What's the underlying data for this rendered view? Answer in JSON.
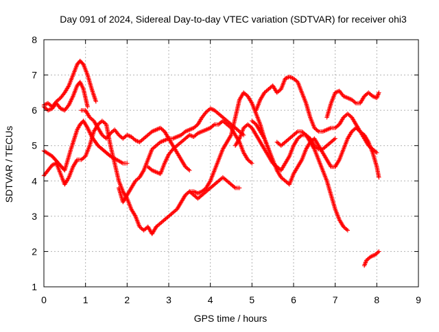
{
  "chart_data": {
    "type": "scatter",
    "title": "Day 091 of 2024, Sidereal Day-to-day VTEC variation (SDTVAR) for receiver ohi3",
    "xlabel": "GPS time / hours",
    "ylabel": "SDTVAR / TECUs",
    "xlim": [
      0,
      9
    ],
    "ylim": [
      1,
      8
    ],
    "xticks": [
      "0",
      "1",
      "2",
      "3",
      "4",
      "5",
      "6",
      "7",
      "8",
      "9"
    ],
    "yticks": [
      "1",
      "2",
      "3",
      "4",
      "5",
      "6",
      "7",
      "8"
    ],
    "grid": true,
    "marker": "+",
    "color": "#ff0000",
    "series": [
      {
        "name": "s1",
        "x": [
          0.0,
          0.2,
          0.35,
          0.5,
          0.65,
          0.8,
          0.87,
          0.95,
          1.05,
          1.15,
          1.3,
          1.45,
          1.6,
          1.75,
          1.9,
          2.0
        ],
        "y": [
          4.85,
          4.7,
          4.5,
          4.3,
          4.9,
          5.45,
          5.6,
          5.7,
          5.5,
          5.25,
          5.0,
          4.85,
          4.7,
          4.6,
          4.5,
          4.5
        ]
      },
      {
        "name": "s2",
        "x": [
          0.0,
          0.1,
          0.2,
          0.3,
          0.4,
          0.5,
          0.6,
          0.7,
          0.8,
          0.87,
          0.95,
          1.05,
          1.15,
          1.25
        ],
        "y": [
          6.15,
          6.2,
          6.1,
          6.25,
          6.35,
          6.5,
          6.7,
          7.0,
          7.3,
          7.4,
          7.3,
          7.0,
          6.6,
          6.25
        ]
      },
      {
        "name": "s3",
        "x": [
          0.0,
          0.1,
          0.2,
          0.3,
          0.4,
          0.5,
          0.6,
          0.7,
          0.8,
          0.87,
          0.95,
          1.05
        ],
        "y": [
          6.1,
          6.0,
          6.05,
          6.2,
          6.05,
          6.0,
          6.15,
          6.4,
          6.7,
          6.8,
          6.6,
          6.1
        ]
      },
      {
        "name": "s4",
        "x": [
          0.0,
          0.1,
          0.2,
          0.3,
          0.4,
          0.5,
          0.6,
          0.7,
          0.8,
          0.9,
          1.0,
          1.1,
          1.2,
          1.3,
          1.4,
          1.5,
          1.6,
          1.7,
          1.8,
          1.9,
          2.0,
          2.1,
          2.2,
          2.3,
          2.4,
          2.5,
          2.6,
          2.7
        ],
        "y": [
          4.15,
          4.3,
          4.45,
          4.5,
          4.2,
          3.9,
          4.1,
          4.4,
          4.6,
          4.6,
          4.7,
          5.0,
          5.4,
          5.6,
          5.7,
          5.6,
          5.0,
          4.5,
          4.0,
          3.7,
          3.5,
          3.2,
          3.0,
          2.7,
          2.6,
          2.7,
          2.5,
          2.7
        ]
      },
      {
        "name": "s5",
        "x": [
          0.9,
          1.0,
          1.1,
          1.2,
          1.3,
          1.4,
          1.5,
          1.6,
          1.7,
          1.8,
          1.9,
          2.0,
          2.1,
          2.2,
          2.3,
          2.4,
          2.5,
          2.6,
          2.7,
          2.8,
          2.9,
          3.0,
          3.1,
          3.2,
          3.3,
          3.4,
          3.5
        ],
        "y": [
          6.0,
          6.0,
          5.8,
          5.7,
          5.5,
          5.3,
          5.2,
          5.35,
          5.45,
          5.3,
          5.2,
          5.3,
          5.25,
          5.15,
          5.1,
          5.2,
          5.3,
          5.4,
          5.45,
          5.5,
          5.4,
          5.2,
          5.0,
          4.8,
          4.6,
          4.4,
          4.3
        ]
      },
      {
        "name": "s6",
        "x": [
          1.8,
          1.9,
          2.0,
          2.1,
          2.2,
          2.3,
          2.4,
          2.5,
          2.6,
          2.7,
          2.8,
          2.9,
          3.0,
          3.1,
          3.2,
          3.3,
          3.4,
          3.5,
          3.6,
          3.7,
          3.8,
          3.9,
          4.0,
          4.1,
          4.2,
          4.3,
          4.4,
          4.5,
          4.6,
          4.7,
          4.8
        ],
        "y": [
          3.8,
          3.4,
          3.6,
          3.8,
          4.0,
          4.1,
          4.3,
          4.6,
          4.9,
          5.0,
          5.1,
          5.15,
          5.2,
          5.2,
          5.25,
          5.3,
          5.4,
          5.45,
          5.5,
          5.6,
          5.8,
          5.95,
          6.05,
          6.0,
          5.9,
          5.8,
          5.7,
          5.6,
          5.5,
          5.4,
          5.3
        ]
      },
      {
        "name": "s7",
        "x": [
          2.5,
          2.6,
          2.7,
          2.8,
          2.9,
          3.0,
          3.1,
          3.2,
          3.3,
          3.4,
          3.5,
          3.6,
          3.7,
          3.8,
          3.9,
          4.0,
          4.1,
          4.2,
          4.3,
          4.4,
          4.5,
          4.6,
          4.7,
          4.8,
          4.9,
          5.0
        ],
        "y": [
          4.4,
          4.3,
          4.25,
          4.2,
          4.5,
          4.75,
          4.9,
          5.0,
          5.1,
          5.2,
          5.3,
          5.25,
          5.35,
          5.4,
          5.45,
          5.5,
          5.6,
          5.6,
          5.7,
          5.6,
          5.5,
          5.3,
          5.1,
          4.8,
          4.6,
          4.5
        ]
      },
      {
        "name": "s8",
        "x": [
          2.7,
          2.8,
          2.9,
          3.0,
          3.1,
          3.2,
          3.3,
          3.4,
          3.5,
          3.6,
          3.7,
          3.8,
          3.9,
          4.0,
          4.1,
          4.2,
          4.3,
          4.4,
          4.5,
          4.6,
          4.7
        ],
        "y": [
          2.7,
          2.8,
          2.9,
          3.0,
          3.1,
          3.2,
          3.4,
          3.6,
          3.7,
          3.6,
          3.5,
          3.6,
          3.7,
          3.8,
          3.9,
          4.0,
          4.1,
          4.0,
          3.9,
          3.8,
          3.8
        ]
      },
      {
        "name": "s9",
        "x": [
          3.5,
          3.6,
          3.7,
          3.8,
          3.9,
          4.0,
          4.1,
          4.2,
          4.3,
          4.4,
          4.5,
          4.6,
          4.7,
          4.8,
          4.9,
          5.0,
          5.1,
          5.2,
          5.3,
          5.4
        ],
        "y": [
          3.7,
          3.7,
          3.65,
          3.7,
          3.8,
          4.0,
          4.3,
          4.6,
          4.9,
          5.1,
          5.3,
          5.8,
          6.3,
          6.5,
          6.4,
          6.2,
          5.9,
          5.6,
          5.2,
          4.9
        ]
      },
      {
        "name": "s10",
        "x": [
          4.6,
          4.7,
          4.8,
          4.9,
          5.0,
          5.1,
          5.2,
          5.3,
          5.4,
          5.5,
          5.6,
          5.7,
          5.8,
          5.9,
          6.0,
          6.1,
          6.2,
          6.3,
          6.4,
          6.5,
          6.6,
          6.7,
          6.8,
          6.9,
          7.0,
          7.1,
          7.2,
          7.3
        ],
        "y": [
          5.0,
          5.2,
          5.5,
          5.6,
          5.5,
          5.3,
          5.1,
          4.9,
          4.7,
          4.5,
          4.4,
          4.3,
          4.5,
          4.7,
          5.0,
          5.2,
          5.3,
          5.3,
          5.1,
          4.9,
          4.6,
          4.3,
          4.0,
          3.6,
          3.2,
          2.9,
          2.7,
          2.6
        ]
      },
      {
        "name": "s11",
        "x": [
          5.1,
          5.2,
          5.3,
          5.4,
          5.5,
          5.6,
          5.7,
          5.8,
          5.9,
          6.0,
          6.1,
          6.2,
          6.3,
          6.4,
          6.5,
          6.6,
          6.7,
          6.8,
          6.9,
          7.0,
          7.1,
          7.2,
          7.3,
          7.4,
          7.5,
          7.6,
          7.7,
          7.8,
          7.9,
          8.0
        ],
        "y": [
          6.0,
          6.3,
          6.5,
          6.6,
          6.7,
          6.5,
          6.6,
          6.9,
          6.95,
          6.9,
          6.8,
          6.5,
          6.2,
          5.8,
          5.5,
          5.4,
          5.4,
          5.45,
          5.5,
          5.5,
          5.6,
          5.8,
          5.9,
          5.8,
          5.6,
          5.4,
          5.2,
          5.0,
          4.9,
          4.8
        ]
      },
      {
        "name": "s12",
        "x": [
          5.0,
          5.1,
          5.2,
          5.3,
          5.4,
          5.5,
          5.6,
          5.7,
          5.8,
          5.9,
          6.0,
          6.1,
          6.2,
          6.3,
          6.4,
          6.5,
          6.6,
          6.7,
          6.8,
          6.9,
          7.0,
          7.1,
          7.2,
          7.3,
          7.4,
          7.5,
          7.6,
          7.7,
          7.8,
          7.9,
          8.0,
          8.05
        ],
        "y": [
          5.7,
          5.6,
          5.4,
          5.2,
          4.9,
          4.6,
          4.3,
          4.1,
          4.0,
          3.9,
          4.2,
          4.4,
          4.6,
          4.9,
          5.1,
          5.2,
          5.0,
          4.8,
          4.6,
          4.4,
          4.4,
          4.6,
          4.9,
          5.2,
          5.4,
          5.5,
          5.4,
          5.3,
          5.1,
          4.8,
          4.4,
          4.1
        ]
      },
      {
        "name": "s13",
        "x": [
          5.6,
          5.7,
          5.8,
          5.9,
          6.0,
          6.1,
          6.2,
          6.3,
          6.4,
          6.5,
          6.6,
          6.7,
          6.8,
          6.9,
          7.0
        ],
        "y": [
          5.1,
          5.0,
          5.1,
          5.2,
          5.3,
          5.4,
          5.4,
          5.3,
          5.2,
          5.0,
          4.9,
          4.9,
          5.0,
          5.1,
          5.2
        ]
      },
      {
        "name": "s14",
        "x": [
          6.8,
          6.9,
          7.0,
          7.1,
          7.2,
          7.3,
          7.4,
          7.5,
          7.6,
          7.7,
          7.8,
          7.9,
          8.0,
          8.05
        ],
        "y": [
          5.8,
          6.2,
          6.5,
          6.55,
          6.4,
          6.35,
          6.3,
          6.2,
          6.2,
          6.4,
          6.5,
          6.4,
          6.35,
          6.5
        ]
      },
      {
        "name": "s15",
        "x": [
          7.7,
          7.75,
          7.8,
          7.85,
          7.9,
          7.95,
          8.0,
          8.05
        ],
        "y": [
          1.6,
          1.75,
          1.8,
          1.85,
          1.88,
          1.9,
          1.95,
          2.0
        ]
      }
    ]
  }
}
